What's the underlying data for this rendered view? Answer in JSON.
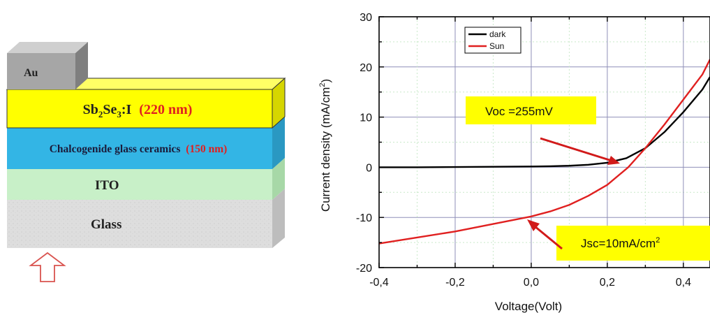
{
  "device": {
    "layers": [
      {
        "id": "au",
        "label": "Au"
      },
      {
        "id": "sb2se3",
        "label_main": "Sb",
        "sub1": "2",
        "label_mid": "Se",
        "sub2": "3",
        "label_tail": ":I",
        "thickness": "(220 nm)"
      },
      {
        "id": "chalco",
        "label": "Chalcogenide glass ceramics",
        "thickness": "(150 nm)"
      },
      {
        "id": "ito",
        "label": "ITO"
      },
      {
        "id": "glass",
        "label": "Glass"
      }
    ],
    "colors": {
      "au": "#a6a6a6",
      "sb2se3": "#ffff00",
      "chalco": "#33b5e5",
      "ito": "#c8f0c8",
      "glass": "#dcdcdc",
      "thickness_text": "#e02020",
      "arrow": "#d9534f"
    },
    "light_arrow": "up-arrow-icon"
  },
  "chart_data": {
    "type": "line",
    "xlabel": "Voltage(Volt)",
    "ylabel_main": "Current density (mA/cm",
    "ylabel_sup": "2",
    "ylabel_tail": ")",
    "xlim": [
      -0.4,
      0.47
    ],
    "ylim": [
      -20,
      30
    ],
    "xticks": [
      -0.4,
      -0.2,
      0.0,
      0.2,
      0.4
    ],
    "xtick_labels": [
      "-0,4",
      "-0,2",
      "0,0",
      "0,2",
      "0,4"
    ],
    "yticks": [
      -20,
      -10,
      0,
      10,
      20,
      30
    ],
    "ytick_labels": [
      "-20",
      "-10",
      "0",
      "10",
      "20",
      "30"
    ],
    "grid": true,
    "legend_position": "top-left",
    "series": [
      {
        "name": "dark",
        "color": "#000000",
        "x": [
          -0.4,
          -0.3,
          -0.2,
          -0.1,
          0.0,
          0.05,
          0.1,
          0.15,
          0.2,
          0.25,
          0.3,
          0.35,
          0.4,
          0.45,
          0.47
        ],
        "y": [
          0.0,
          0.0,
          0.05,
          0.1,
          0.15,
          0.2,
          0.3,
          0.5,
          0.9,
          1.8,
          3.8,
          7.0,
          11.0,
          15.5,
          18.0
        ]
      },
      {
        "name": "Sun",
        "color": "#e02020",
        "x": [
          -0.4,
          -0.3,
          -0.2,
          -0.1,
          0.0,
          0.05,
          0.1,
          0.15,
          0.2,
          0.255,
          0.3,
          0.35,
          0.4,
          0.45,
          0.47
        ],
        "y": [
          -15.2,
          -14.0,
          -12.8,
          -11.3,
          -9.8,
          -8.8,
          -7.5,
          -5.7,
          -3.5,
          0.0,
          3.8,
          8.5,
          13.5,
          18.5,
          21.5
        ]
      }
    ],
    "annotations": [
      {
        "id": "voc",
        "text": "Voc =255mV",
        "bg": "#ffff00"
      },
      {
        "id": "jsc",
        "text_main": "Jsc=10mA/cm",
        "sup": "2",
        "bg": "#ffff00"
      }
    ]
  }
}
